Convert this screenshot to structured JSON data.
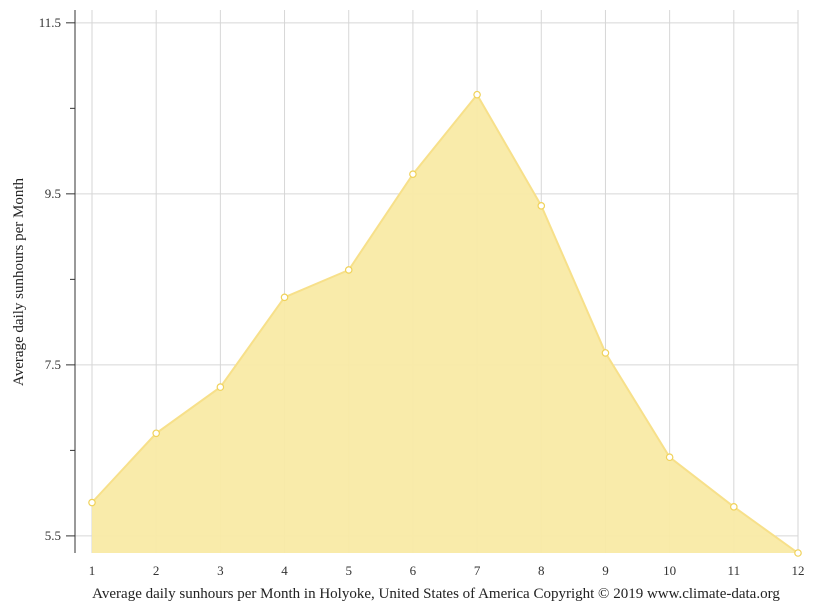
{
  "chart_data": {
    "type": "area",
    "title": "",
    "xlabel": "Average daily sunhours per Month in Holyoke, United States of America Copyright © 2019 www.climate-data.org",
    "ylabel": "Average daily sunhours per Month",
    "x": [
      1,
      2,
      3,
      4,
      5,
      6,
      7,
      8,
      9,
      10,
      11,
      12
    ],
    "x_tick_labels": [
      "1",
      "2",
      "3",
      "4",
      "5",
      "6",
      "7",
      "8",
      "9",
      "10",
      "11",
      "12"
    ],
    "values": [
      5.89,
      6.7,
      7.24,
      8.29,
      8.61,
      9.73,
      10.66,
      9.36,
      7.64,
      6.42,
      5.84,
      5.3
    ],
    "y_tick_labels": [
      "5.5",
      "7.5",
      "9.5",
      "11.5"
    ],
    "y_ticks": [
      5.5,
      7.5,
      9.5,
      11.5
    ],
    "ylim": [
      5.3,
      11.65
    ],
    "xlim": [
      1,
      12
    ],
    "grid": true,
    "legend": "none",
    "colors": {
      "fill": "#f9eaa5",
      "line": "#f7e08a",
      "marker_stroke": "#f0d25a",
      "grid": "#d6d6d6",
      "axis": "#333333"
    }
  }
}
